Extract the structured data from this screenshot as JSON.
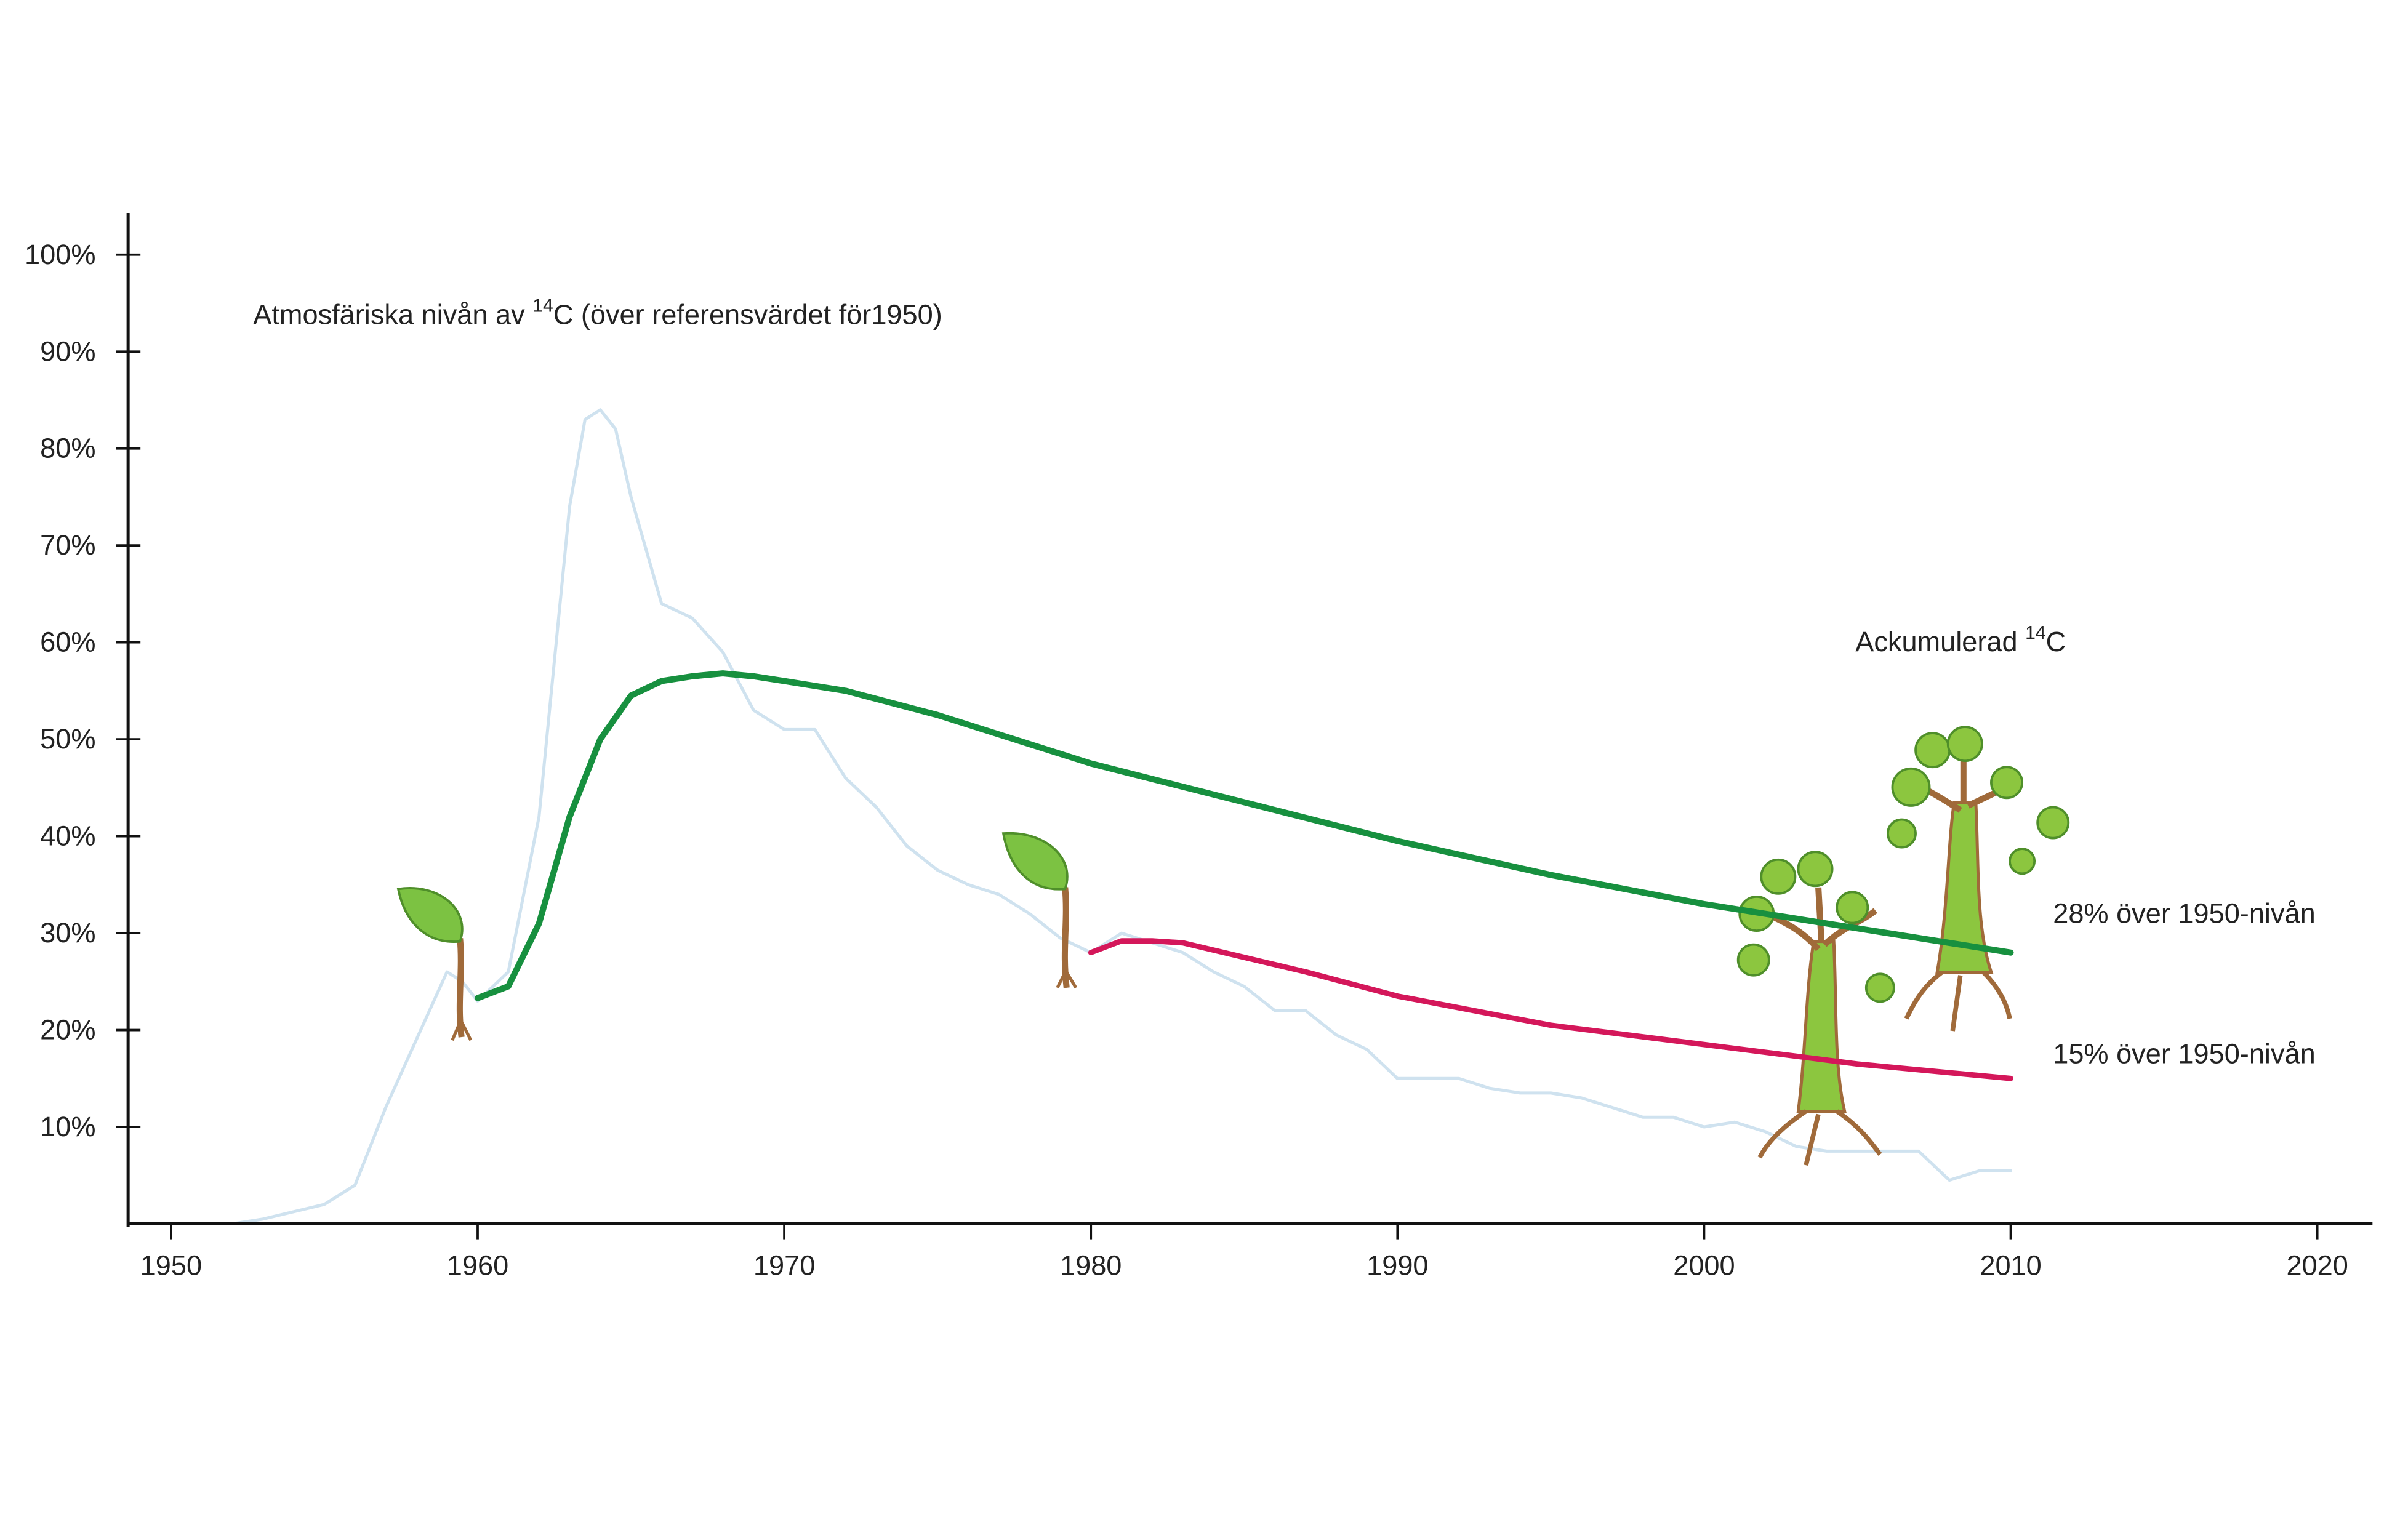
{
  "chart_data": {
    "type": "line",
    "annotations": [
      {
        "parts": [
          "Atmosfäriska nivån av ",
          "14",
          "C (över referensvärdet för1950)"
        ]
      },
      {
        "parts": [
          "Ackumulerad ",
          "14",
          "C"
        ]
      },
      {
        "parts": [
          "28% över 1950-nivån"
        ]
      },
      {
        "parts": [
          "15% över 1950-nivån"
        ]
      }
    ],
    "xlim": [
      1948.6,
      2021.8
    ],
    "ylim": [
      0,
      104.3
    ],
    "xticks": [
      1950,
      1960,
      1970,
      1980,
      1990,
      2000,
      2010,
      2020
    ],
    "yticks": [
      {
        "value": 10,
        "label": "10%"
      },
      {
        "value": 20,
        "label": "20%"
      },
      {
        "value": 30,
        "label": "30%"
      },
      {
        "value": 40,
        "label": "40%"
      },
      {
        "value": 50,
        "label": "50%"
      },
      {
        "value": 60,
        "label": "60%"
      },
      {
        "value": 70,
        "label": "70%"
      },
      {
        "value": 80,
        "label": "80%"
      },
      {
        "value": 90,
        "label": "90%"
      },
      {
        "value": 100,
        "label": "100%"
      }
    ],
    "series": [
      {
        "color": "#cfe2ef",
        "x": [
          1950,
          1952,
          1953,
          1955,
          1956,
          1957,
          1958,
          1959,
          1959.5,
          1960,
          1961,
          1962,
          1963,
          1963.5,
          1964,
          1964.5,
          1965,
          1966,
          1967,
          1968,
          1969,
          1970,
          1971,
          1972,
          1973,
          1974,
          1975,
          1976,
          1977,
          1978,
          1979,
          1980,
          1981,
          1982,
          1983,
          1984,
          1985,
          1986,
          1987,
          1988,
          1989,
          1990,
          1991,
          1992,
          1993,
          1994,
          1995,
          1996,
          1997,
          1998,
          1999,
          2000,
          2001,
          2002,
          2003,
          2004,
          2005,
          2006,
          2007,
          2008,
          2009,
          2010
        ],
        "values": [
          0,
          0,
          0.5,
          2,
          4,
          12,
          19,
          26,
          25,
          23,
          26,
          42,
          74,
          83,
          84,
          82,
          75,
          64,
          62.5,
          59,
          53,
          51,
          51,
          46,
          43,
          39,
          36.5,
          35,
          34,
          32,
          29.5,
          28,
          30,
          29,
          28,
          26,
          24.5,
          22,
          22,
          19.5,
          18,
          15,
          15,
          15,
          14,
          13.5,
          13.5,
          13,
          12,
          11,
          11,
          10,
          10.5,
          9.5,
          8,
          7.5,
          7.5,
          7.5,
          7.5,
          4.5,
          5.5,
          5.5
        ]
      },
      {
        "color": "#17903f",
        "x": [
          1960,
          1961,
          1962,
          1963,
          1964,
          1965,
          1966,
          1967,
          1968,
          1969,
          1970,
          1972,
          1975,
          1980,
          1985,
          1990,
          1995,
          2000,
          2005,
          2010
        ],
        "values": [
          23.3,
          24.5,
          31,
          42,
          50,
          54.5,
          56,
          56.5,
          56.8,
          56.5,
          56,
          55,
          52.5,
          47.5,
          43.5,
          39.5,
          36,
          33,
          30.5,
          28
        ]
      },
      {
        "color": "#d4175a",
        "x": [
          1980,
          1981,
          1982,
          1983,
          1985,
          1987,
          1990,
          1995,
          2000,
          2005,
          2010
        ],
        "values": [
          28,
          29.2,
          29.2,
          29,
          27.5,
          26,
          23.5,
          20.5,
          18.5,
          16.5,
          15
        ]
      }
    ]
  }
}
